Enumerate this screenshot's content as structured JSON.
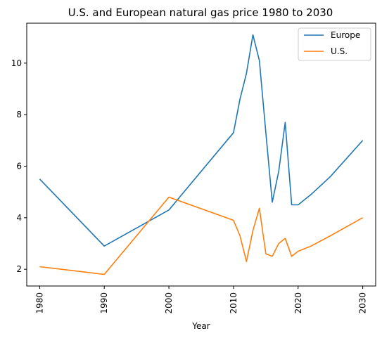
{
  "chart_data": {
    "type": "line",
    "title": "U.S. and European natural gas price 1980 to 2030",
    "xlabel": "Year",
    "ylabel": "",
    "xlim": [
      1978,
      2032
    ],
    "ylim": [
      1.35,
      11.55
    ],
    "x_ticks": [
      1980,
      1990,
      2000,
      2010,
      2020,
      2030
    ],
    "y_ticks": [
      2,
      4,
      6,
      8,
      10
    ],
    "x_tick_rotation": "vertical",
    "grid": false,
    "legend": "top-right",
    "series": [
      {
        "name": "Europe",
        "color": "#1f77b4",
        "x": [
          1980,
          1990,
          2000,
          2010,
          2011,
          2012,
          2013,
          2014,
          2015,
          2016,
          2017,
          2018,
          2019,
          2020,
          2022,
          2025,
          2030
        ],
        "y": [
          5.5,
          2.9,
          4.3,
          7.3,
          8.6,
          9.6,
          11.1,
          10.1,
          7.3,
          4.6,
          5.8,
          7.7,
          4.5,
          4.5,
          4.9,
          5.6,
          7.0
        ]
      },
      {
        "name": "U.S.",
        "color": "#ff7f0e",
        "x": [
          1980,
          1990,
          2000,
          2010,
          2011,
          2012,
          2013,
          2014,
          2015,
          2016,
          2017,
          2018,
          2019,
          2020,
          2022,
          2025,
          2030
        ],
        "y": [
          2.1,
          1.8,
          4.8,
          3.9,
          3.3,
          2.3,
          3.5,
          4.37,
          2.6,
          2.5,
          3.0,
          3.2,
          2.5,
          2.7,
          2.9,
          3.3,
          4.0
        ]
      }
    ]
  }
}
